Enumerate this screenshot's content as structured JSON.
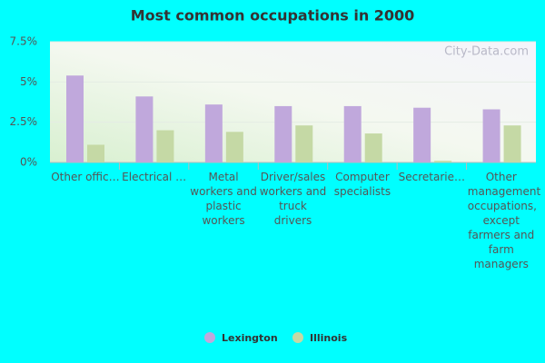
{
  "chart_data": {
    "type": "bar",
    "title": "Most common occupations in 2000",
    "watermark": "City-Data.com",
    "categories": [
      "Other offic…",
      "Electrical …",
      "Metal workers and plastic workers",
      "Driver/sales workers and truck drivers",
      "Computer specialists",
      "Secretarie…",
      "Other management occupations, except farmers and farm managers"
    ],
    "series": [
      {
        "name": "Lexington",
        "color": "#c0a8dc",
        "values": [
          5.4,
          4.1,
          3.6,
          3.5,
          3.5,
          3.4,
          3.3
        ]
      },
      {
        "name": "Illinois",
        "color": "#c5d9a5",
        "values": [
          1.1,
          2.0,
          1.9,
          2.3,
          1.8,
          0.1,
          2.3
        ]
      }
    ],
    "ylim": [
      0,
      7.5
    ],
    "yticks": [
      {
        "value": 0,
        "label": "0%"
      },
      {
        "value": 2.5,
        "label": "2.5%"
      },
      {
        "value": 5,
        "label": "5%"
      },
      {
        "value": 7.5,
        "label": "7.5%"
      }
    ],
    "grid": true
  }
}
